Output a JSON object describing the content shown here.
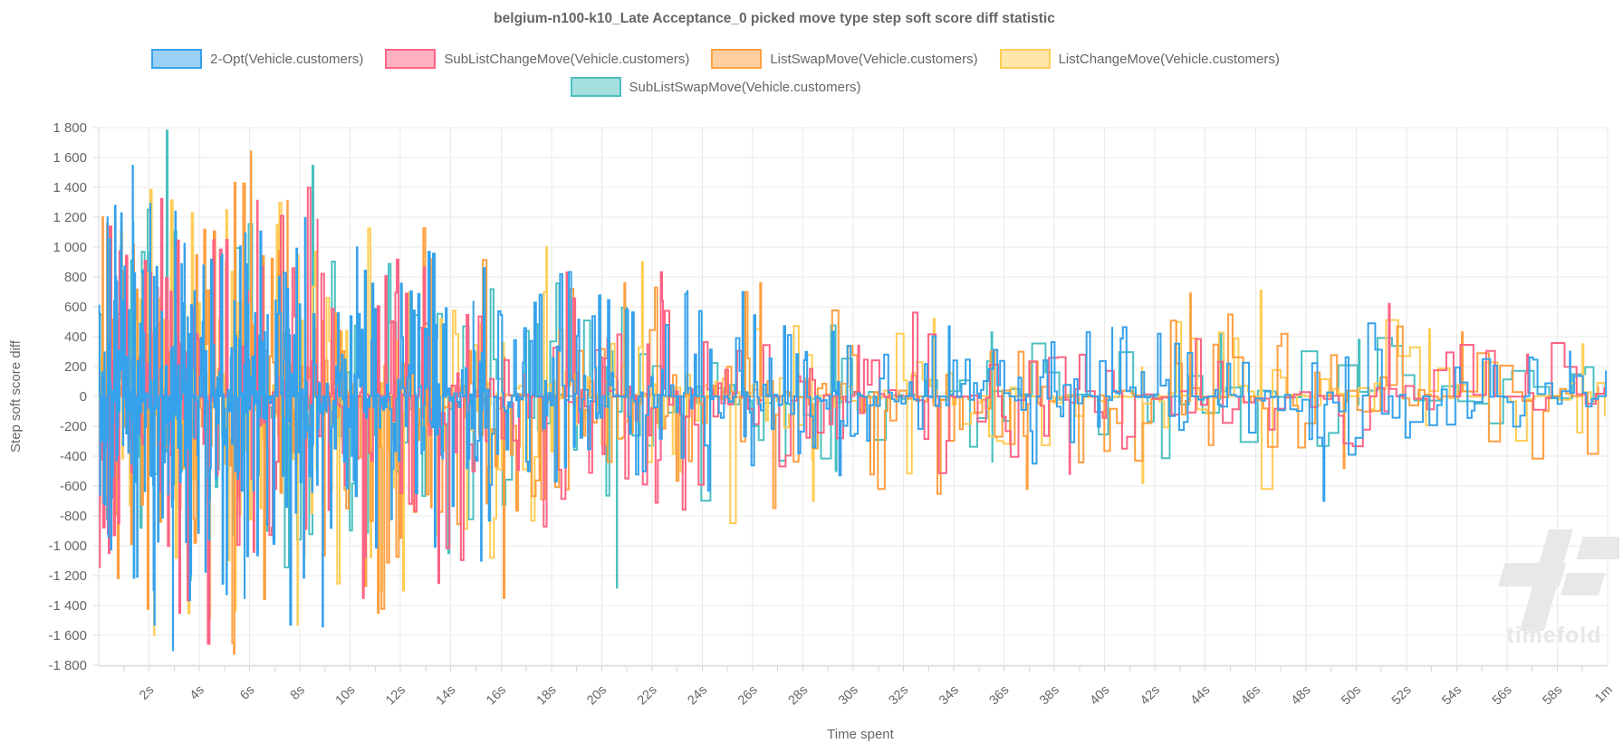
{
  "watermark": "timefold",
  "colors": {
    "text": "#666666",
    "grid": "#e9e9e9",
    "axis_border": "#d9d9d9",
    "watermark": "#e8e8e8"
  },
  "chart_data": {
    "type": "line",
    "stepped": true,
    "title": "belgium-n100-k10_Late Acceptance_0 picked move type step soft score diff statistic",
    "xlabel": "Time spent",
    "ylabel": "Step soft score diff",
    "ylim": [
      -1800,
      1800
    ],
    "y_tick_step": 200,
    "x_range_seconds": [
      0,
      60
    ],
    "x_tick_labels": [
      "2s",
      "4s",
      "6s",
      "8s",
      "10s",
      "12s",
      "14s",
      "16s",
      "18s",
      "20s",
      "22s",
      "24s",
      "26s",
      "28s",
      "30s",
      "32s",
      "34s",
      "36s",
      "38s",
      "40s",
      "42s",
      "44s",
      "46s",
      "48s",
      "50s",
      "52s",
      "54s",
      "56s",
      "58s",
      "1m"
    ],
    "x_minor_tick_every_seconds": 1,
    "grid": true,
    "legend_position": "top",
    "legend_rows": [
      [
        0,
        1,
        2,
        3
      ],
      [
        4
      ]
    ],
    "draw_order": [
      4,
      3,
      2,
      1,
      0
    ],
    "neg_bias": 1.08,
    "envelope": {
      "t": [
        0,
        2,
        4,
        6,
        8,
        10,
        12,
        14,
        16,
        18,
        20,
        22,
        24,
        26,
        28,
        30,
        32,
        34,
        36,
        38,
        40,
        42,
        44,
        46,
        48,
        50,
        52,
        54,
        56,
        58,
        60
      ],
      "amp": [
        1250,
        1320,
        1280,
        1360,
        1300,
        1120,
        1150,
        960,
        900,
        880,
        780,
        730,
        690,
        630,
        580,
        500,
        470,
        500,
        460,
        430,
        460,
        480,
        460,
        490,
        430,
        460,
        430,
        390,
        410,
        390,
        360
      ]
    },
    "series": [
      {
        "name": "2-Opt(Vehicle.customers)",
        "color": "#36A2EB",
        "seed": 101,
        "scale": 0.9,
        "power": 2.6,
        "interval": [
          0.02,
          0.26
        ],
        "spikes": [
          [
            0.35,
            1200
          ],
          [
            1.35,
            1545
          ],
          [
            2.05,
            1290
          ],
          [
            2.95,
            -1700
          ],
          [
            5.8,
            -1350
          ],
          [
            8.2,
            1195
          ],
          [
            8.9,
            -1540
          ],
          [
            14.9,
            640
          ],
          [
            15.2,
            -1100
          ],
          [
            23.4,
            705
          ],
          [
            25.6,
            700
          ],
          [
            33.8,
            470
          ],
          [
            40.3,
            460
          ],
          [
            48.7,
            -700
          ],
          [
            58.5,
            300
          ]
        ]
      },
      {
        "name": "SubListChangeMove(Vehicle.customers)",
        "color": "#FF6384",
        "seed": 202,
        "scale": 0.95,
        "power": 3.0,
        "interval": [
          0.05,
          0.42
        ],
        "spikes": [
          [
            3.2,
            -1450
          ],
          [
            6.3,
            1310
          ],
          [
            8.7,
            1190
          ],
          [
            10.5,
            -1350
          ],
          [
            13.5,
            -1250
          ],
          [
            18.6,
            830
          ],
          [
            22.4,
            640
          ],
          [
            30.2,
            340
          ],
          [
            38.6,
            -520
          ],
          [
            51.3,
            620
          ],
          [
            56.8,
            280
          ]
        ]
      },
      {
        "name": "ListSwapMove(Vehicle.customers)",
        "color": "#FF9F40",
        "seed": 303,
        "scale": 1.0,
        "power": 3.0,
        "interval": [
          0.045,
          0.4
        ],
        "spikes": [
          [
            0.15,
            1200
          ],
          [
            5.4,
            1430
          ],
          [
            6.05,
            1640
          ],
          [
            7.5,
            1310
          ],
          [
            11.1,
            -1450
          ],
          [
            13.2,
            920
          ],
          [
            16.1,
            -1350
          ],
          [
            20.9,
            760
          ],
          [
            26.3,
            760
          ],
          [
            36.9,
            -620
          ],
          [
            43.4,
            690
          ],
          [
            49.5,
            -480
          ],
          [
            54.2,
            430
          ]
        ]
      },
      {
        "name": "ListChangeMove(Vehicle.customers)",
        "color": "#FFCD56",
        "seed": 404,
        "scale": 1.0,
        "power": 3.0,
        "interval": [
          0.045,
          0.4
        ],
        "spikes": [
          [
            2.2,
            -1600
          ],
          [
            4.4,
            -1480
          ],
          [
            7.9,
            -1530
          ],
          [
            10.8,
            985
          ],
          [
            12.1,
            -1300
          ],
          [
            17.8,
            1000
          ],
          [
            21.6,
            900
          ],
          [
            28.4,
            -700
          ],
          [
            33.2,
            520
          ],
          [
            41.5,
            -580
          ],
          [
            46.2,
            710
          ],
          [
            52.9,
            450
          ],
          [
            59.0,
            350
          ]
        ]
      },
      {
        "name": "SubListSwapMove(Vehicle.customers)",
        "color": "#4BC0C0",
        "seed": 505,
        "scale": 0.85,
        "power": 2.8,
        "interval": [
          0.09,
          0.65
        ],
        "spikes": [
          [
            2.7,
            1780
          ],
          [
            6.7,
            -900
          ],
          [
            8.5,
            1545
          ],
          [
            13.9,
            -1050
          ],
          [
            20.6,
            -1280
          ],
          [
            29.3,
            -500
          ],
          [
            35.5,
            430
          ],
          [
            44.6,
            420
          ],
          [
            50.1,
            380
          ]
        ]
      }
    ]
  }
}
